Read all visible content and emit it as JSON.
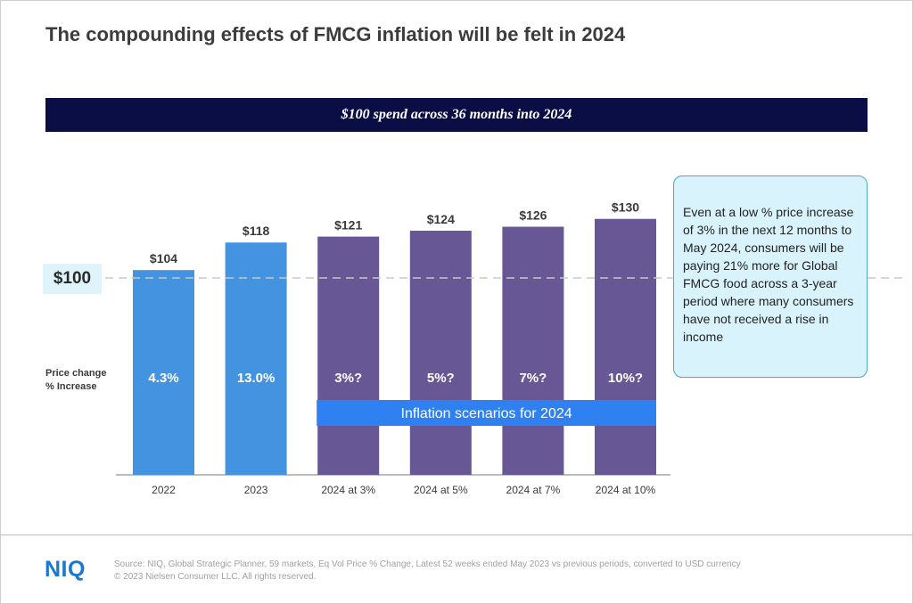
{
  "title": "The compounding effects of FMCG inflation will be felt in 2024",
  "banner": "$100 spend across 36 months into 2024",
  "reference_label": "$100",
  "row_label": [
    "Price change",
    "% Increase"
  ],
  "scenario_label": "Inflation scenarios for 2024",
  "callout": "Even at a low % price increase of 3% in the next 12 months to May 2024, consumers will be paying 21% more for Global FMCG food across a 3-year period where many consumers have not received a rise in income",
  "footer": {
    "logo": "NIQ",
    "source_line1": "Source: NIQ, Global Strategic Planner, 59 markets, Eq Vol Price % Change, Latest 52 weeks ended May 2023 vs previous periods, converted to USD currency",
    "source_line2": "© 2023 Nielsen Consumer LLC. All rights reserved."
  },
  "colors": {
    "actual": "#4393e0",
    "scenario": "#685795",
    "banner": "#0a0e45",
    "scenario_band": "#2f80f0",
    "callout_bg": "#d8f3fc"
  },
  "chart_data": {
    "type": "bar",
    "categories": [
      "2022",
      "2023",
      "2024 at 3%",
      "2024 at 5%",
      "2024 at 7%",
      "2024 at 10%"
    ],
    "values": [
      104,
      118,
      121,
      124,
      126,
      130
    ],
    "value_labels": [
      "$104",
      "$118",
      "$121",
      "$124",
      "$126",
      "$130"
    ],
    "increase_labels": [
      "4.3%",
      "13.0%",
      "3%?",
      "5%?",
      "7%?",
      "10%?"
    ],
    "bar_kinds": [
      "actual",
      "actual",
      "scenario",
      "scenario",
      "scenario",
      "scenario"
    ],
    "reference_line": 100,
    "title": "$100 spend across 36 months into 2024",
    "xlabel": "",
    "ylabel": ""
  }
}
